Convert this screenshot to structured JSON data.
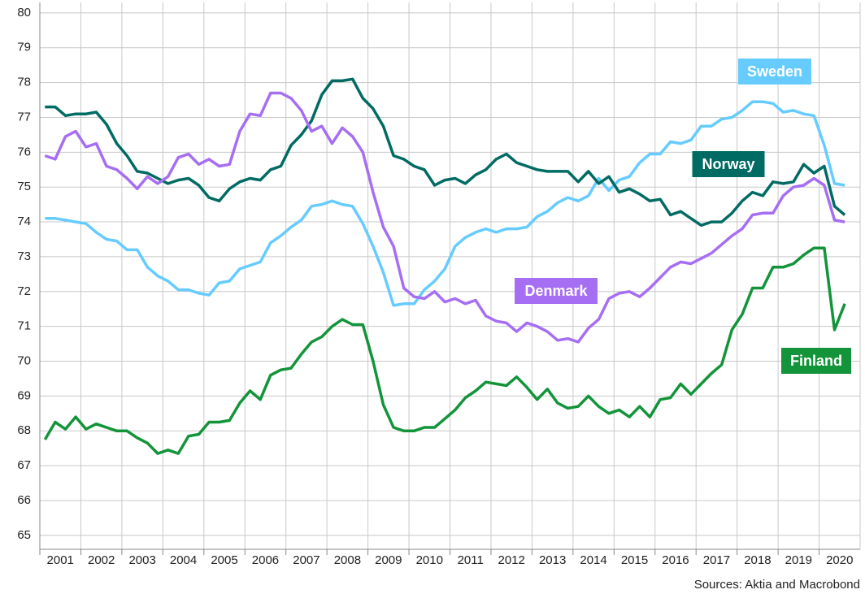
{
  "chart_data": {
    "type": "line",
    "source": "Sources: Aktia and Macrobond",
    "categories": [
      "2001",
      null,
      null,
      null,
      "2002",
      null,
      null,
      null,
      "2003",
      null,
      null,
      null,
      "2004",
      null,
      null,
      null,
      "2005",
      null,
      null,
      null,
      "2006",
      null,
      null,
      null,
      "2007",
      null,
      null,
      null,
      "2008",
      null,
      null,
      null,
      "2009",
      null,
      null,
      null,
      "2010",
      null,
      null,
      null,
      "2011",
      null,
      null,
      null,
      "2012",
      null,
      null,
      null,
      "2013",
      null,
      null,
      null,
      "2014",
      null,
      null,
      null,
      "2015",
      null,
      null,
      null,
      "2016",
      null,
      null,
      null,
      "2017",
      null,
      null,
      null,
      "2018",
      null,
      null,
      null,
      "2019",
      null,
      null,
      null,
      "2020",
      null,
      null,
      null
    ],
    "ylim": [
      64.6,
      80.3
    ],
    "yticks": [
      65,
      66,
      67,
      68,
      69,
      70,
      71,
      72,
      73,
      74,
      75,
      76,
      77,
      78,
      79,
      80
    ],
    "grid": true,
    "series": [
      {
        "name": "Sweden",
        "color": "#66ccff",
        "values": [
          74.1,
          74.1,
          74.05,
          74.0,
          73.95,
          73.7,
          73.5,
          73.45,
          73.2,
          73.2,
          72.7,
          72.45,
          72.3,
          72.05,
          72.05,
          71.95,
          71.9,
          72.25,
          72.3,
          72.65,
          72.75,
          72.85,
          73.4,
          73.6,
          73.85,
          74.05,
          74.45,
          74.5,
          74.6,
          74.5,
          74.45,
          73.95,
          73.3,
          72.55,
          71.6,
          71.65,
          71.65,
          72.05,
          72.3,
          72.65,
          73.3,
          73.55,
          73.7,
          73.8,
          73.7,
          73.8,
          73.8,
          73.85,
          74.15,
          74.3,
          74.55,
          74.7,
          74.6,
          74.75,
          75.25,
          74.9,
          75.2,
          75.3,
          75.7,
          75.95,
          75.95,
          76.3,
          76.25,
          76.35,
          76.75,
          76.75,
          76.95,
          77.0,
          77.2,
          77.45,
          77.45,
          77.4,
          77.15,
          77.2,
          77.1,
          77.05,
          76.2,
          75.1,
          75.05,
          null
        ]
      },
      {
        "name": "Norway",
        "color": "#006b63",
        "values": [
          77.3,
          77.3,
          77.05,
          77.1,
          77.1,
          77.15,
          76.8,
          76.25,
          75.9,
          75.45,
          75.4,
          75.25,
          75.1,
          75.2,
          75.25,
          75.05,
          74.7,
          74.6,
          74.95,
          75.15,
          75.25,
          75.2,
          75.5,
          75.6,
          76.2,
          76.5,
          76.9,
          77.65,
          78.05,
          78.05,
          78.1,
          77.55,
          77.25,
          76.75,
          75.9,
          75.8,
          75.6,
          75.5,
          75.05,
          75.2,
          75.25,
          75.1,
          75.35,
          75.5,
          75.8,
          75.95,
          75.7,
          75.6,
          75.5,
          75.45,
          75.45,
          75.45,
          75.15,
          75.45,
          75.1,
          75.3,
          74.85,
          74.95,
          74.8,
          74.6,
          74.65,
          74.2,
          74.3,
          74.1,
          73.9,
          74.0,
          74.0,
          74.25,
          74.6,
          74.85,
          74.75,
          75.15,
          75.1,
          75.15,
          75.65,
          75.4,
          75.6,
          74.45,
          74.2,
          null
        ]
      },
      {
        "name": "Denmark",
        "color": "#a66ef2",
        "values": [
          75.9,
          75.8,
          76.45,
          76.6,
          76.15,
          76.25,
          75.6,
          75.5,
          75.25,
          74.95,
          75.3,
          75.1,
          75.3,
          75.85,
          75.95,
          75.65,
          75.8,
          75.6,
          75.65,
          76.6,
          77.1,
          77.05,
          77.7,
          77.7,
          77.55,
          77.2,
          76.6,
          76.75,
          76.25,
          76.7,
          76.45,
          76.0,
          74.85,
          73.85,
          73.3,
          72.1,
          71.85,
          71.8,
          72.0,
          71.7,
          71.8,
          71.65,
          71.75,
          71.3,
          71.15,
          71.1,
          70.85,
          71.1,
          71.0,
          70.85,
          70.6,
          70.65,
          70.55,
          70.95,
          71.2,
          71.8,
          71.95,
          72.0,
          71.85,
          72.1,
          72.4,
          72.7,
          72.85,
          72.8,
          72.95,
          73.1,
          73.35,
          73.6,
          73.8,
          74.2,
          74.25,
          74.25,
          74.75,
          75.0,
          75.05,
          75.25,
          75.05,
          74.05,
          74.0,
          null
        ]
      },
      {
        "name": "Finland",
        "color": "#13943a",
        "values": [
          67.75,
          68.25,
          68.05,
          68.4,
          68.05,
          68.2,
          68.1,
          68.0,
          68.0,
          67.8,
          67.65,
          67.35,
          67.45,
          67.35,
          67.85,
          67.9,
          68.25,
          68.25,
          68.3,
          68.8,
          69.15,
          68.9,
          69.6,
          69.75,
          69.8,
          70.2,
          70.55,
          70.7,
          71.0,
          71.2,
          71.05,
          71.05,
          70.0,
          68.75,
          68.1,
          68.0,
          68.0,
          68.1,
          68.1,
          68.35,
          68.6,
          68.95,
          69.15,
          69.4,
          69.35,
          69.3,
          69.55,
          69.25,
          68.9,
          69.2,
          68.8,
          68.65,
          68.7,
          69.0,
          68.7,
          68.5,
          68.6,
          68.4,
          68.7,
          68.4,
          68.9,
          68.95,
          69.35,
          69.05,
          69.35,
          69.65,
          69.9,
          70.9,
          71.35,
          72.1,
          72.1,
          72.7,
          72.7,
          72.8,
          73.05,
          73.25,
          73.25,
          70.9,
          71.65,
          null
        ]
      }
    ]
  }
}
